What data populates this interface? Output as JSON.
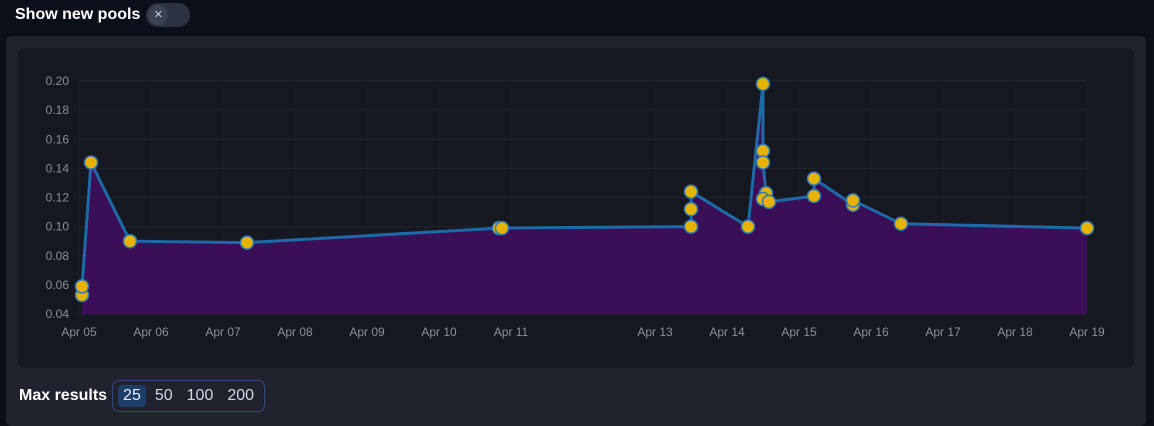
{
  "header": {
    "toggle_label": "Show new pools",
    "toggle_state": "off",
    "toggle_icon": "close-icon"
  },
  "max_results": {
    "label": "Max results",
    "options": [
      "25",
      "50",
      "100",
      "200"
    ],
    "selected": "25"
  },
  "colors": {
    "line": "#1d6aa8",
    "fill": "#3b0f57",
    "point": "#e6b400",
    "point_stroke": "#2f7ab6"
  },
  "chart_data": {
    "type": "area",
    "title": "",
    "xlabel": "",
    "ylabel": "",
    "ylim": [
      0.04,
      0.2
    ],
    "yticks": [
      "0.20",
      "0.18",
      "0.16",
      "0.14",
      "0.12",
      "0.10",
      "0.08",
      "0.06",
      "0.04"
    ],
    "xlim": [
      "Apr 05",
      "Apr 19"
    ],
    "xticks": [
      "Apr 05",
      "Apr 06",
      "Apr 07",
      "Apr 08",
      "Apr 09",
      "Apr 10",
      "Apr 11",
      "Apr 13",
      "Apr 14",
      "Apr 15",
      "Apr 16",
      "Apr 17",
      "Apr 18",
      "Apr 19"
    ],
    "grid": true,
    "legend": "none",
    "series": [
      {
        "points": [
          {
            "x": "Apr 05 01:00",
            "y": 0.053
          },
          {
            "x": "Apr 05 01:00",
            "y": 0.059
          },
          {
            "x": "Apr 05 04:00",
            "y": 0.144
          },
          {
            "x": "Apr 05 17:00",
            "y": 0.09
          },
          {
            "x": "Apr 07 08:00",
            "y": 0.089
          },
          {
            "x": "Apr 10 20:00",
            "y": 0.099
          },
          {
            "x": "Apr 10 21:00",
            "y": 0.099
          },
          {
            "x": "Apr 13 12:00",
            "y": 0.1
          },
          {
            "x": "Apr 13 12:00",
            "y": 0.112
          },
          {
            "x": "Apr 13 12:00",
            "y": 0.124
          },
          {
            "x": "Apr 14 07:00",
            "y": 0.1
          },
          {
            "x": "Apr 14 12:00",
            "y": 0.198
          },
          {
            "x": "Apr 14 12:00",
            "y": 0.152
          },
          {
            "x": "Apr 14 12:00",
            "y": 0.144
          },
          {
            "x": "Apr 14 13:00",
            "y": 0.123
          },
          {
            "x": "Apr 14 12:00",
            "y": 0.119
          },
          {
            "x": "Apr 14 14:00",
            "y": 0.117
          },
          {
            "x": "Apr 15 05:00",
            "y": 0.121
          },
          {
            "x": "Apr 15 05:00",
            "y": 0.133
          },
          {
            "x": "Apr 15 18:00",
            "y": 0.115
          },
          {
            "x": "Apr 15 18:00",
            "y": 0.118
          },
          {
            "x": "Apr 16 10:00",
            "y": 0.102
          },
          {
            "x": "Apr 19 00:00",
            "y": 0.099
          }
        ]
      }
    ]
  }
}
